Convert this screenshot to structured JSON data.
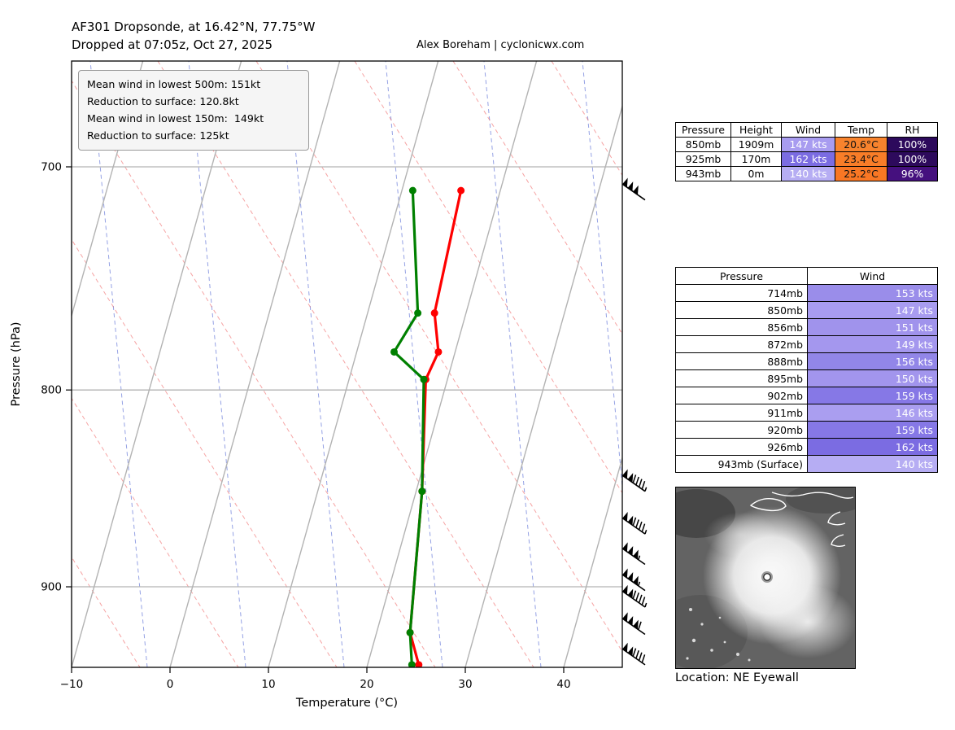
{
  "header": {
    "title_line1": "AF301 Dropsonde, at 16.42°N, 77.75°W",
    "title_line2": "Dropped at 07:05z, Oct 27, 2025",
    "credit": "Alex Boreham | cyclonicwx.com"
  },
  "info_box": {
    "lines": [
      "Mean wind in lowest 500m: 151kt",
      "Reduction to surface: 120.8kt",
      "Mean wind in lowest 150m:  149kt",
      "Reduction to surface: 125kt"
    ]
  },
  "chart_data": {
    "type": "line",
    "subtype": "skew-t log-p sounding",
    "xlabel": "Temperature (°C)",
    "ylabel": "Pressure (hPa)",
    "x_ticks": [
      -10,
      0,
      10,
      20,
      30,
      40
    ],
    "x_tick_labels": [
      "−10",
      "0",
      "10",
      "20",
      "30",
      "40"
    ],
    "y_ticks": [
      700,
      800,
      900
    ],
    "xlim": [
      -10,
      46
    ],
    "pressure_range_hpa": [
      657,
      945
    ],
    "grid": "skewed isotherms (gray solid), dry adiabats (red dashed), moist adiabats (blue dashed), pressure lines (gray)",
    "series": [
      {
        "name": "temperature",
        "color": "#ff0000",
        "points": [
          [
            710,
            16.0
          ],
          [
            764,
            16.8
          ],
          [
            782,
            18.3
          ],
          [
            795,
            17.8
          ],
          [
            850,
            20.6
          ],
          [
            925,
            23.4
          ],
          [
            943,
            25.2
          ]
        ]
      },
      {
        "name": "dewpoint",
        "color": "#008000",
        "points": [
          [
            710,
            11.1
          ],
          [
            764,
            15.1
          ],
          [
            782,
            13.8
          ],
          [
            795,
            17.6
          ],
          [
            850,
            20.6
          ],
          [
            925,
            23.4
          ],
          [
            943,
            24.5
          ]
        ]
      }
    ],
    "wind_barbs": [
      [
        714,
        153
      ],
      [
        850,
        147
      ],
      [
        872,
        149
      ],
      [
        888,
        156
      ],
      [
        902,
        159
      ],
      [
        911,
        146
      ],
      [
        926,
        162
      ],
      [
        943,
        140
      ]
    ]
  },
  "summary_table": {
    "headers": [
      "Pressure",
      "Height",
      "Wind",
      "Temp",
      "RH"
    ],
    "rows": [
      {
        "pressure": "850mb",
        "height": "1909m",
        "wind": "147 kts",
        "wind_color": "#a89cf0",
        "temp": "20.6°C",
        "temp_color": "#f8832d",
        "rh": "100%",
        "rh_color": "#2d0a5c"
      },
      {
        "pressure": "925mb",
        "height": "170m",
        "wind": "162 kts",
        "wind_color": "#7b6ce2",
        "temp": "23.4°C",
        "temp_color": "#f87d28",
        "rh": "100%",
        "rh_color": "#2d0a5c"
      },
      {
        "pressure": "943mb",
        "height": "0m",
        "wind": "140 kts",
        "wind_color": "#b6adf3",
        "temp": "25.2°C",
        "temp_color": "#f97724",
        "rh": "96%",
        "rh_color": "#45107e"
      }
    ]
  },
  "wind_table": {
    "headers": [
      "Pressure",
      "Wind"
    ],
    "rows": [
      {
        "pressure": "714mb",
        "wind": "153 kts",
        "wind_color": "#9a8dea"
      },
      {
        "pressure": "850mb",
        "wind": "147 kts",
        "wind_color": "#a89cf0"
      },
      {
        "pressure": "856mb",
        "wind": "151 kts",
        "wind_color": "#a093ec"
      },
      {
        "pressure": "872mb",
        "wind": "149 kts",
        "wind_color": "#a497ee"
      },
      {
        "pressure": "888mb",
        "wind": "156 kts",
        "wind_color": "#9286e8"
      },
      {
        "pressure": "895mb",
        "wind": "150 kts",
        "wind_color": "#a295ed"
      },
      {
        "pressure": "902mb",
        "wind": "159 kts",
        "wind_color": "#8678e6"
      },
      {
        "pressure": "911mb",
        "wind": "146 kts",
        "wind_color": "#aa9ef0"
      },
      {
        "pressure": "920mb",
        "wind": "159 kts",
        "wind_color": "#8678e6"
      },
      {
        "pressure": "926mb",
        "wind": "162 kts",
        "wind_color": "#7b6ce2"
      },
      {
        "pressure": "943mb (Surface)",
        "wind": "140 kts",
        "wind_color": "#b6adf3"
      }
    ]
  },
  "satellite": {
    "caption": "Location: NE Eyewall"
  }
}
